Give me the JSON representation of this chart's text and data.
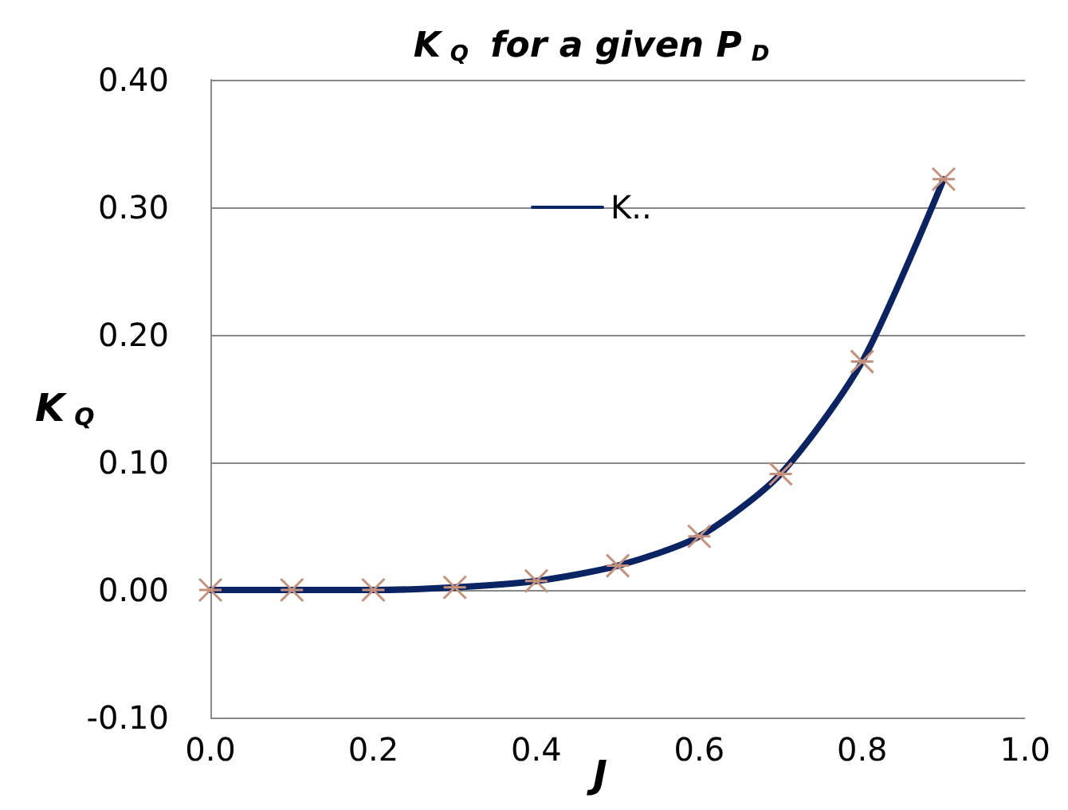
{
  "chart_data": {
    "type": "line",
    "title": "K$_{Q}$ for a given P$_{D}$",
    "xlabel": "J",
    "ylabel": "K$_{Q}$",
    "x": [
      0.0,
      0.1,
      0.2,
      0.3,
      0.4,
      0.5,
      0.6,
      0.7,
      0.8,
      0.9
    ],
    "series": [
      {
        "name": "K..",
        "color": "#0a2463",
        "colors": [
          "#c4917c",
          "#c4917c",
          "#c4917c",
          "#c4917c",
          "#c4917c",
          "#c4917c",
          "#c4917c",
          "#c4917c",
          "#c4917c",
          "#c4917c"
        ],
        "values": [
          0.0,
          0.0,
          0.0,
          0.002,
          0.007,
          0.019,
          0.042,
          0.091,
          0.179,
          0.322
        ]
      }
    ],
    "xlim": [
      0,
      1
    ],
    "xticks": [
      {
        "value": 0,
        "label": "0.0"
      },
      0.2,
      0.4,
      0.6,
      0.8,
      {
        "value": 1,
        "label": "1.0"
      }
    ],
    "ylim": [
      -0.1,
      0.4
    ],
    "yticks": [
      {
        "value": -0.1,
        "label": "-0.10"
      },
      {
        "value": 0,
        "label": "0.00"
      },
      {
        "value": 0.1,
        "label": "0.10"
      },
      {
        "value": 0.2,
        "label": "0.20"
      },
      {
        "value": 0.3,
        "label": "0.30"
      },
      {
        "value": 0.4,
        "label": "0.40"
      }
    ],
    "grid": "y",
    "legend": "top",
    "marker": "cross",
    "line_style": "solid"
  }
}
